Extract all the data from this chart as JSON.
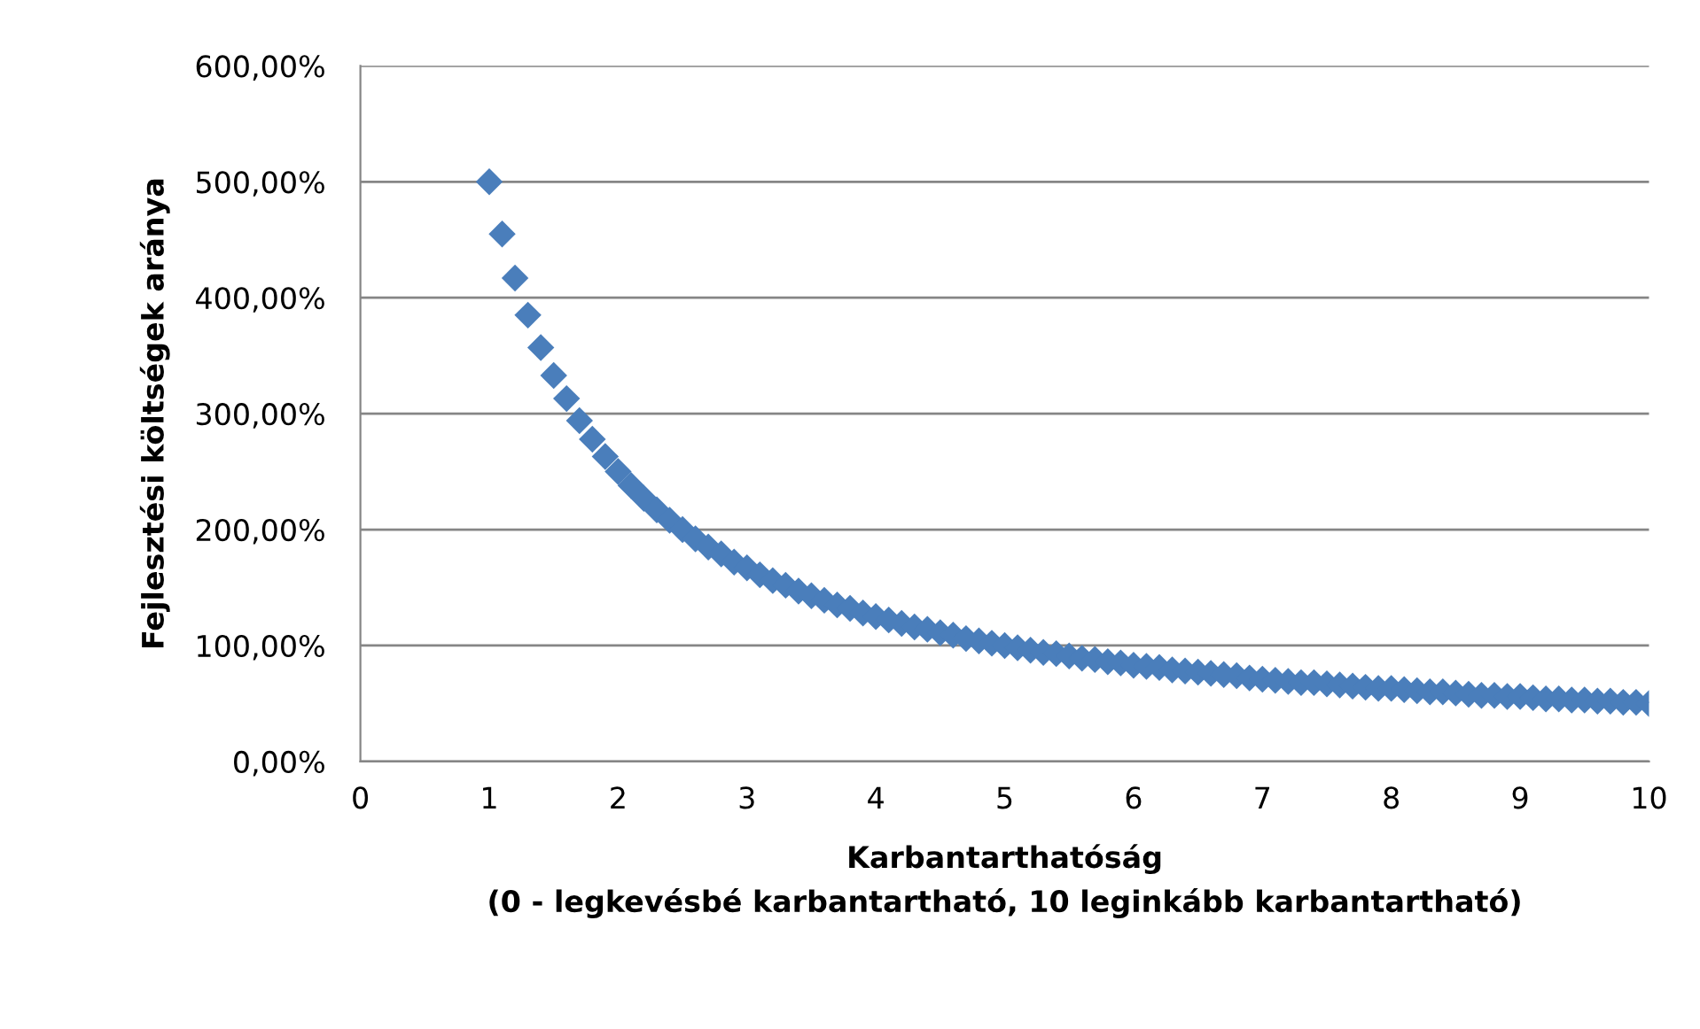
{
  "chart_data": {
    "type": "scatter",
    "xlabel": "Karbantarthatóság\n(0 - legkevésbé karbantartható, 10 leginkább karbantartható)",
    "ylabel": "Fejlesztési költségek aránya",
    "x": [
      1.0,
      1.1,
      1.2,
      1.3,
      1.4,
      1.5,
      1.6,
      1.7,
      1.8,
      1.9,
      2.0,
      2.1,
      2.2,
      2.3,
      2.4,
      2.5,
      2.6,
      2.7,
      2.8,
      2.9,
      3.0,
      3.1,
      3.2,
      3.3,
      3.4,
      3.5,
      3.6,
      3.7,
      3.8,
      3.9,
      4.0,
      4.1,
      4.2,
      4.3,
      4.4,
      4.5,
      4.6,
      4.7,
      4.8,
      4.9,
      5.0,
      5.1,
      5.2,
      5.3,
      5.4,
      5.5,
      5.6,
      5.7,
      5.8,
      5.9,
      6.0,
      6.1,
      6.2,
      6.3,
      6.4,
      6.5,
      6.6,
      6.7,
      6.8,
      6.9,
      7.0,
      7.1,
      7.2,
      7.3,
      7.4,
      7.5,
      7.6,
      7.7,
      7.8,
      7.9,
      8.0,
      8.1,
      8.2,
      8.3,
      8.4,
      8.5,
      8.6,
      8.7,
      8.8,
      8.9,
      9.0,
      9.1,
      9.2,
      9.3,
      9.4,
      9.5,
      9.6,
      9.7,
      9.8,
      9.9,
      10.0
    ],
    "series": [
      {
        "color": "#4a7ebb",
        "values": [
          500,
          455,
          417,
          385,
          357,
          333,
          313,
          294,
          278,
          263,
          250,
          238,
          227,
          217,
          208,
          200,
          192,
          185,
          179,
          172,
          167,
          161,
          156,
          152,
          147,
          143,
          139,
          135,
          132,
          128,
          125,
          122,
          119,
          116,
          114,
          111,
          109,
          106,
          104,
          102,
          100,
          98,
          96,
          94,
          93,
          91,
          89,
          88,
          86,
          85,
          83,
          82,
          81,
          79,
          78,
          77,
          76,
          75,
          74,
          72,
          71,
          70,
          69,
          68,
          68,
          67,
          66,
          65,
          64,
          63,
          63,
          62,
          61,
          60,
          60,
          59,
          58,
          57,
          57,
          56,
          56,
          55,
          54,
          54,
          53,
          53,
          52,
          52,
          51,
          51,
          50
        ]
      }
    ],
    "xlim": [
      0,
      10
    ],
    "xticks": [
      0,
      1,
      2,
      3,
      4,
      5,
      6,
      7,
      8,
      9,
      10
    ],
    "ylim": [
      0,
      600
    ],
    "yticks": [
      {
        "value": 0,
        "label": "0,00%"
      },
      {
        "value": 100,
        "label": "100,00%"
      },
      {
        "value": 200,
        "label": "200,00%"
      },
      {
        "value": 300,
        "label": "300,00%"
      },
      {
        "value": 400,
        "label": "400,00%"
      },
      {
        "value": 500,
        "label": "500,00%"
      },
      {
        "value": 600,
        "label": "600,00%"
      }
    ],
    "grid": "y",
    "marker": "diamond"
  }
}
